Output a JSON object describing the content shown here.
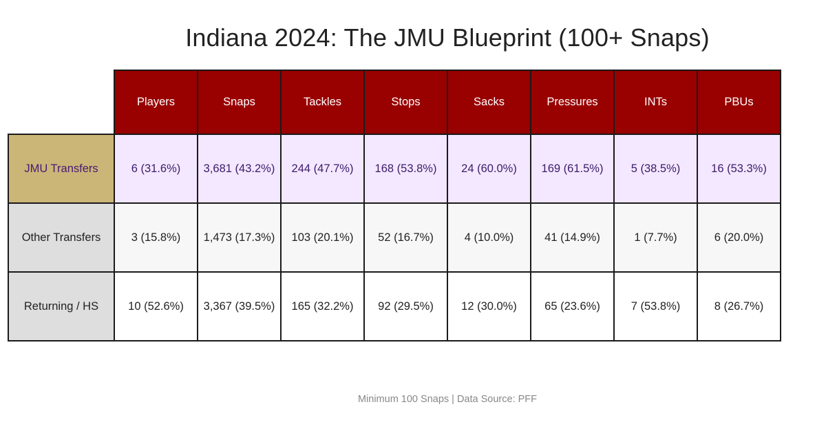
{
  "chart_data": {
    "type": "table",
    "title": "Indiana 2024: The JMU Blueprint (100+ Snaps)",
    "footer": "Minimum 100 Snaps | Data Source: PFF",
    "columns": [
      "Players",
      "Snaps",
      "Tackles",
      "Stops",
      "Sacks",
      "Pressures",
      "INTs",
      "PBUs"
    ],
    "rows": [
      {
        "label": "JMU Transfers",
        "cells": [
          "6 (31.6%)",
          "3,681 (43.2%)",
          "244 (47.7%)",
          "168 (53.8%)",
          "24 (60.0%)",
          "169 (61.5%)",
          "5 (38.5%)",
          "16 (53.3%)"
        ]
      },
      {
        "label": "Other Transfers",
        "cells": [
          "3 (15.8%)",
          "1,473 (17.3%)",
          "103 (20.1%)",
          "52 (16.7%)",
          "4 (10.0%)",
          "41 (14.9%)",
          "1 (7.7%)",
          "6 (20.0%)"
        ]
      },
      {
        "label": "Returning / HS",
        "cells": [
          "10 (52.6%)",
          "3,367 (39.5%)",
          "165 (32.2%)",
          "92 (29.5%)",
          "12 (30.0%)",
          "65 (23.6%)",
          "7 (53.8%)",
          "8 (26.7%)"
        ]
      }
    ]
  },
  "colors": {
    "header_bg": "#990000",
    "header_text": "#ffffff",
    "jmu_label_bg": "#cbb677",
    "jmu_label_text": "#4a1a73",
    "jmu_row_bg": "#f3e8ff",
    "other_label_bg": "#dedede"
  }
}
